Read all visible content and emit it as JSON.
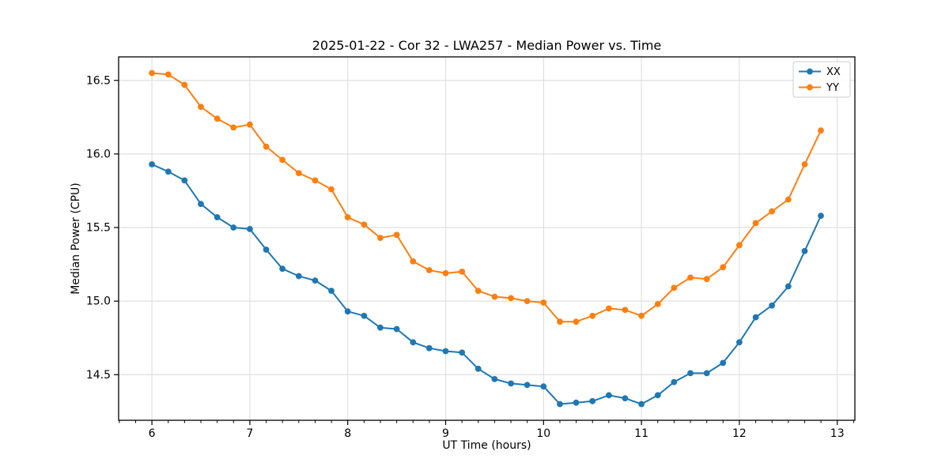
{
  "chart_data": {
    "type": "line",
    "title": "2025-01-22 - Cor 32 - LWA257 - Median Power vs. Time",
    "xlabel": "UT Time (hours)",
    "ylabel": "Median Power (CPU)",
    "xlim": [
      5.66,
      13.18
    ],
    "ylim": [
      14.19,
      16.66
    ],
    "x_ticks": [
      6,
      7,
      8,
      9,
      10,
      11,
      12,
      13
    ],
    "y_ticks": [
      14.5,
      15.0,
      15.5,
      16.0,
      16.5
    ],
    "x_minor_step": 0.16667,
    "grid": true,
    "legend_position": "upper right",
    "colors": {
      "grid": "#dedede",
      "spine": "#000000",
      "legend_border": "#cccccc",
      "series_xx": "#1f77b4",
      "series_yy": "#ff7f0e"
    },
    "x": [
      6.0,
      6.167,
      6.333,
      6.5,
      6.667,
      6.833,
      7.0,
      7.167,
      7.333,
      7.5,
      7.667,
      7.833,
      8.0,
      8.167,
      8.333,
      8.5,
      8.667,
      8.833,
      9.0,
      9.167,
      9.333,
      9.5,
      9.667,
      9.833,
      10.0,
      10.167,
      10.333,
      10.5,
      10.667,
      10.833,
      11.0,
      11.167,
      11.333,
      11.5,
      11.667,
      11.833,
      12.0,
      12.167,
      12.333,
      12.5,
      12.667,
      12.833
    ],
    "series": [
      {
        "name": "XX",
        "color": "#1f77b4",
        "values": [
          15.93,
          15.88,
          15.82,
          15.66,
          15.57,
          15.5,
          15.49,
          15.35,
          15.22,
          15.17,
          15.14,
          15.07,
          14.93,
          14.9,
          14.82,
          14.81,
          14.72,
          14.68,
          14.66,
          14.65,
          14.54,
          14.47,
          14.44,
          14.43,
          14.42,
          14.3,
          14.31,
          14.32,
          14.36,
          14.34,
          14.3,
          14.36,
          14.45,
          14.51,
          14.51,
          14.58,
          14.72,
          14.89,
          14.97,
          15.1,
          15.34,
          15.58
        ]
      },
      {
        "name": "YY",
        "color": "#ff7f0e",
        "values": [
          16.55,
          16.54,
          16.47,
          16.32,
          16.24,
          16.18,
          16.2,
          16.05,
          15.96,
          15.87,
          15.82,
          15.76,
          15.57,
          15.52,
          15.43,
          15.45,
          15.27,
          15.21,
          15.19,
          15.2,
          15.07,
          15.03,
          15.02,
          15.0,
          14.99,
          14.86,
          14.86,
          14.9,
          14.95,
          14.94,
          14.9,
          14.98,
          15.09,
          15.16,
          15.15,
          15.23,
          15.38,
          15.53,
          15.61,
          15.69,
          15.93,
          16.16
        ]
      }
    ]
  }
}
